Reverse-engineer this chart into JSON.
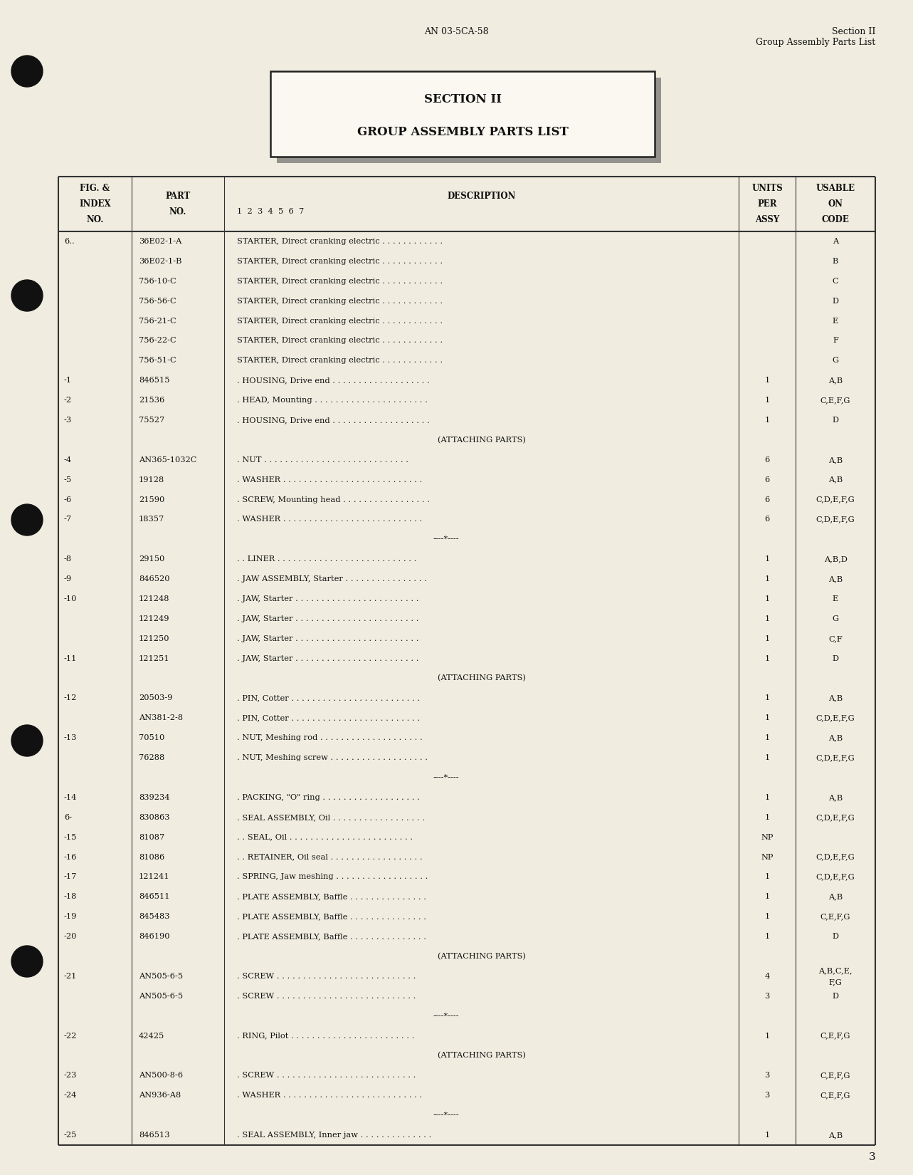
{
  "bg_color": "#f0ede0",
  "page_number": "3",
  "header_center": "AN 03-5CA-58",
  "header_right_line1": "Section II",
  "header_right_line2": "Group Assembly Parts List",
  "section_box_line1": "SECTION II",
  "section_box_line2": "GROUP ASSEMBLY PARTS LIST",
  "rows": [
    {
      "fig": "6..",
      "part": "36E02-1-A",
      "desc": "STARTER, Direct cranking electric . . . . . . . . . . . .",
      "units": "",
      "code": "A",
      "type": "data"
    },
    {
      "fig": "",
      "part": "36E02-1-B",
      "desc": "STARTER, Direct cranking electric . . . . . . . . . . . .",
      "units": "",
      "code": "B",
      "type": "data"
    },
    {
      "fig": "",
      "part": "756-10-C",
      "desc": "STARTER, Direct cranking electric . . . . . . . . . . . .",
      "units": "",
      "code": "C",
      "type": "data"
    },
    {
      "fig": "",
      "part": "756-56-C",
      "desc": "STARTER, Direct cranking electric . . . . . . . . . . . .",
      "units": "",
      "code": "D",
      "type": "data"
    },
    {
      "fig": "",
      "part": "756-21-C",
      "desc": "STARTER, Direct cranking electric . . . . . . . . . . . .",
      "units": "",
      "code": "E",
      "type": "data"
    },
    {
      "fig": "",
      "part": "756-22-C",
      "desc": "STARTER, Direct cranking electric . . . . . . . . . . . .",
      "units": "",
      "code": "F",
      "type": "data"
    },
    {
      "fig": "",
      "part": "756-51-C",
      "desc": "STARTER, Direct cranking electric . . . . . . . . . . . .",
      "units": "",
      "code": "G",
      "type": "data"
    },
    {
      "fig": "-1",
      "part": "846515",
      "desc": ". HOUSING, Drive end . . . . . . . . . . . . . . . . . . .",
      "units": "1",
      "code": "A,B",
      "type": "data"
    },
    {
      "fig": "-2",
      "part": "21536",
      "desc": ". HEAD, Mounting . . . . . . . . . . . . . . . . . . . . . .",
      "units": "1",
      "code": "C,E,F,G",
      "type": "data"
    },
    {
      "fig": "-3",
      "part": "75527",
      "desc": ". HOUSING, Drive end . . . . . . . . . . . . . . . . . . .",
      "units": "1",
      "code": "D",
      "type": "data"
    },
    {
      "fig": "",
      "part": "",
      "desc": "(ATTACHING PARTS)",
      "units": "",
      "code": "",
      "type": "attaching"
    },
    {
      "fig": "-4",
      "part": "AN365-1032C",
      "desc": ". NUT . . . . . . . . . . . . . . . . . . . . . . . . . . . .",
      "units": "6",
      "code": "A,B",
      "type": "data"
    },
    {
      "fig": "-5",
      "part": "19128",
      "desc": ". WASHER . . . . . . . . . . . . . . . . . . . . . . . . . . .",
      "units": "6",
      "code": "A,B",
      "type": "data"
    },
    {
      "fig": "-6",
      "part": "21590",
      "desc": ". SCREW, Mounting head . . . . . . . . . . . . . . . . .",
      "units": "6",
      "code": "C,D,E,F,G",
      "type": "data"
    },
    {
      "fig": "-7",
      "part": "18357",
      "desc": ". WASHER . . . . . . . . . . . . . . . . . . . . . . . . . . .",
      "units": "6",
      "code": "C,D,E,F,G",
      "type": "data"
    },
    {
      "fig": "",
      "part": "",
      "desc": "----*----",
      "units": "",
      "code": "",
      "type": "separator"
    },
    {
      "fig": "-8",
      "part": "29150",
      "desc": ". . LINER . . . . . . . . . . . . . . . . . . . . . . . . . . .",
      "units": "1",
      "code": "A,B,D",
      "type": "data"
    },
    {
      "fig": "-9",
      "part": "846520",
      "desc": ". JAW ASSEMBLY, Starter . . . . . . . . . . . . . . . .",
      "units": "1",
      "code": "A,B",
      "type": "data"
    },
    {
      "fig": "-10",
      "part": "121248",
      "desc": ". JAW, Starter . . . . . . . . . . . . . . . . . . . . . . . .",
      "units": "1",
      "code": "E",
      "type": "data"
    },
    {
      "fig": "",
      "part": "121249",
      "desc": ". JAW, Starter . . . . . . . . . . . . . . . . . . . . . . . .",
      "units": "1",
      "code": "G",
      "type": "data"
    },
    {
      "fig": "",
      "part": "121250",
      "desc": ". JAW, Starter . . . . . . . . . . . . . . . . . . . . . . . .",
      "units": "1",
      "code": "C,F",
      "type": "data"
    },
    {
      "fig": "-11",
      "part": "121251",
      "desc": ". JAW, Starter . . . . . . . . . . . . . . . . . . . . . . . .",
      "units": "1",
      "code": "D",
      "type": "data"
    },
    {
      "fig": "",
      "part": "",
      "desc": "(ATTACHING PARTS)",
      "units": "",
      "code": "",
      "type": "attaching"
    },
    {
      "fig": "-12",
      "part": "20503-9",
      "desc": ". PIN, Cotter . . . . . . . . . . . . . . . . . . . . . . . . .",
      "units": "1",
      "code": "A,B",
      "type": "data"
    },
    {
      "fig": "",
      "part": "AN381-2-8",
      "desc": ". PIN, Cotter . . . . . . . . . . . . . . . . . . . . . . . . .",
      "units": "1",
      "code": "C,D,E,F,G",
      "type": "data"
    },
    {
      "fig": "-13",
      "part": "70510",
      "desc": ". NUT, Meshing rod . . . . . . . . . . . . . . . . . . . .",
      "units": "1",
      "code": "A,B",
      "type": "data"
    },
    {
      "fig": "",
      "part": "76288",
      "desc": ". NUT, Meshing screw . . . . . . . . . . . . . . . . . . .",
      "units": "1",
      "code": "C,D,E,F,G",
      "type": "data"
    },
    {
      "fig": "",
      "part": "",
      "desc": "----*----",
      "units": "",
      "code": "",
      "type": "separator"
    },
    {
      "fig": "-14",
      "part": "839234",
      "desc": ". PACKING, \"O\" ring . . . . . . . . . . . . . . . . . . .",
      "units": "1",
      "code": "A,B",
      "type": "data"
    },
    {
      "fig": "6-",
      "part": "830863",
      "desc": ". SEAL ASSEMBLY, Oil . . . . . . . . . . . . . . . . . .",
      "units": "1",
      "code": "C,D,E,F,G",
      "type": "data"
    },
    {
      "fig": "-15",
      "part": "81087",
      "desc": ". . SEAL, Oil . . . . . . . . . . . . . . . . . . . . . . . .",
      "units": "NP",
      "code": "",
      "type": "data"
    },
    {
      "fig": "-16",
      "part": "81086",
      "desc": ". . RETAINER, Oil seal . . . . . . . . . . . . . . . . . .",
      "units": "NP",
      "code": "C,D,E,F,G",
      "type": "data"
    },
    {
      "fig": "-17",
      "part": "121241",
      "desc": ". SPRING, Jaw meshing . . . . . . . . . . . . . . . . . .",
      "units": "1",
      "code": "C,D,E,F,G",
      "type": "data"
    },
    {
      "fig": "-18",
      "part": "846511",
      "desc": ". PLATE ASSEMBLY, Baffle . . . . . . . . . . . . . . .",
      "units": "1",
      "code": "A,B",
      "type": "data"
    },
    {
      "fig": "-19",
      "part": "845483",
      "desc": ". PLATE ASSEMBLY, Baffle . . . . . . . . . . . . . . .",
      "units": "1",
      "code": "C,E,F,G",
      "type": "data"
    },
    {
      "fig": "-20",
      "part": "846190",
      "desc": ". PLATE ASSEMBLY, Baffle . . . . . . . . . . . . . . .",
      "units": "1",
      "code": "D",
      "type": "data"
    },
    {
      "fig": "",
      "part": "",
      "desc": "(ATTACHING PARTS)",
      "units": "",
      "code": "",
      "type": "attaching"
    },
    {
      "fig": "-21",
      "part": "AN505-6-5",
      "desc": ". SCREW . . . . . . . . . . . . . . . . . . . . . . . . . . .",
      "units": "4",
      "code": "A,B,C,E,\nF,G",
      "type": "data"
    },
    {
      "fig": "",
      "part": "AN505-6-5",
      "desc": ". SCREW . . . . . . . . . . . . . . . . . . . . . . . . . . .",
      "units": "3",
      "code": "D",
      "type": "data"
    },
    {
      "fig": "",
      "part": "",
      "desc": "----*----",
      "units": "",
      "code": "",
      "type": "separator"
    },
    {
      "fig": "-22",
      "part": "42425",
      "desc": ". RING, Pilot . . . . . . . . . . . . . . . . . . . . . . . .",
      "units": "1",
      "code": "C,E,F,G",
      "type": "data"
    },
    {
      "fig": "",
      "part": "",
      "desc": "(ATTACHING PARTS)",
      "units": "",
      "code": "",
      "type": "attaching"
    },
    {
      "fig": "-23",
      "part": "AN500-8-6",
      "desc": ". SCREW . . . . . . . . . . . . . . . . . . . . . . . . . . .",
      "units": "3",
      "code": "C,E,F,G",
      "type": "data"
    },
    {
      "fig": "-24",
      "part": "AN936-A8",
      "desc": ". WASHER . . . . . . . . . . . . . . . . . . . . . . . . . . .",
      "units": "3",
      "code": "C,E,F,G",
      "type": "data"
    },
    {
      "fig": "",
      "part": "",
      "desc": "----*----",
      "units": "",
      "code": "",
      "type": "separator"
    },
    {
      "fig": "-25",
      "part": "846513",
      "desc": ". SEAL ASSEMBLY, Inner jaw . . . . . . . . . . . . . .",
      "units": "1",
      "code": "A,B",
      "type": "data"
    }
  ]
}
